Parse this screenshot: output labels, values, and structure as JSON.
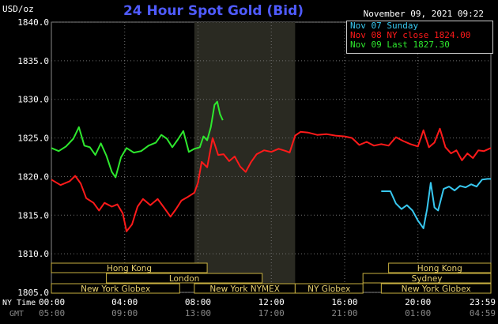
{
  "chart_data": {
    "type": "line",
    "title": "24 Hour Spot Gold (Bid)",
    "unit_label": "USD/oz",
    "date_label": "November 09, 2021 09:22",
    "ylim": [
      1805.0,
      1840.0
    ],
    "y_ticks": [
      "1840.0",
      "1835.0",
      "1830.0",
      "1825.0",
      "1820.0",
      "1815.0",
      "1810.0",
      "1805.0"
    ],
    "x_ticks_ny": [
      "00:00",
      "04:00",
      "08:00",
      "12:00",
      "16:00",
      "20:00",
      "23:59"
    ],
    "x_ticks_gmt": [
      "05:00",
      "09:00",
      "13:00",
      "17:00",
      "21:00",
      "01:00",
      "04:59"
    ],
    "x_row_labels": [
      "NY Time",
      "GMT"
    ],
    "grid": true,
    "legend_position": "top-right",
    "series": [
      {
        "name": "Nov 07 Sunday",
        "color": "#38c8f0",
        "points": [
          [
            18.0,
            1818.1
          ],
          [
            18.5,
            1818.1
          ],
          [
            18.8,
            1816.5
          ],
          [
            19.1,
            1815.8
          ],
          [
            19.4,
            1816.3
          ],
          [
            19.7,
            1815.6
          ],
          [
            20.0,
            1814.3
          ],
          [
            20.3,
            1813.3
          ],
          [
            20.5,
            1815.8
          ],
          [
            20.7,
            1819.2
          ],
          [
            20.9,
            1816.0
          ],
          [
            21.1,
            1815.6
          ],
          [
            21.4,
            1818.4
          ],
          [
            21.7,
            1818.7
          ],
          [
            22.0,
            1818.2
          ],
          [
            22.3,
            1818.8
          ],
          [
            22.6,
            1818.6
          ],
          [
            22.9,
            1819.0
          ],
          [
            23.2,
            1818.7
          ],
          [
            23.5,
            1819.6
          ],
          [
            23.8,
            1819.7
          ],
          [
            23.98,
            1819.7
          ]
        ]
      },
      {
        "name": "Nov 08 NY close 1824.00",
        "color": "#ff1a1a",
        "points": [
          [
            0.0,
            1819.6
          ],
          [
            0.5,
            1818.9
          ],
          [
            1.0,
            1819.4
          ],
          [
            1.3,
            1820.1
          ],
          [
            1.6,
            1819.1
          ],
          [
            1.9,
            1817.2
          ],
          [
            2.3,
            1816.6
          ],
          [
            2.6,
            1815.6
          ],
          [
            2.9,
            1816.6
          ],
          [
            3.3,
            1816.1
          ],
          [
            3.6,
            1816.4
          ],
          [
            3.9,
            1815.2
          ],
          [
            4.1,
            1812.9
          ],
          [
            4.4,
            1813.8
          ],
          [
            4.7,
            1816.1
          ],
          [
            5.0,
            1817.1
          ],
          [
            5.4,
            1816.3
          ],
          [
            5.8,
            1817.1
          ],
          [
            6.2,
            1815.8
          ],
          [
            6.5,
            1814.8
          ],
          [
            6.8,
            1815.8
          ],
          [
            7.1,
            1816.9
          ],
          [
            7.4,
            1817.3
          ],
          [
            7.8,
            1817.9
          ],
          [
            8.0,
            1819.2
          ],
          [
            8.2,
            1821.9
          ],
          [
            8.5,
            1821.2
          ],
          [
            8.8,
            1825.0
          ],
          [
            9.1,
            1822.8
          ],
          [
            9.4,
            1822.9
          ],
          [
            9.7,
            1822.0
          ],
          [
            10.0,
            1822.6
          ],
          [
            10.3,
            1821.3
          ],
          [
            10.6,
            1820.6
          ],
          [
            10.9,
            1821.9
          ],
          [
            11.2,
            1822.9
          ],
          [
            11.6,
            1823.4
          ],
          [
            12.0,
            1823.2
          ],
          [
            12.4,
            1823.6
          ],
          [
            12.8,
            1823.3
          ],
          [
            13.0,
            1823.1
          ],
          [
            13.3,
            1825.3
          ],
          [
            13.6,
            1825.8
          ],
          [
            14.0,
            1825.7
          ],
          [
            14.5,
            1825.4
          ],
          [
            15.0,
            1825.5
          ],
          [
            15.5,
            1825.3
          ],
          [
            16.0,
            1825.2
          ],
          [
            16.4,
            1825.0
          ],
          [
            16.8,
            1824.1
          ],
          [
            17.2,
            1824.5
          ],
          [
            17.6,
            1824.0
          ],
          [
            18.0,
            1824.2
          ],
          [
            18.4,
            1824.0
          ],
          [
            18.8,
            1825.1
          ],
          [
            19.2,
            1824.6
          ],
          [
            19.6,
            1824.2
          ],
          [
            20.0,
            1823.9
          ],
          [
            20.3,
            1826.0
          ],
          [
            20.6,
            1823.8
          ],
          [
            20.9,
            1824.4
          ],
          [
            21.2,
            1826.2
          ],
          [
            21.5,
            1823.8
          ],
          [
            21.8,
            1823.0
          ],
          [
            22.1,
            1823.4
          ],
          [
            22.4,
            1822.1
          ],
          [
            22.7,
            1823.0
          ],
          [
            23.0,
            1822.4
          ],
          [
            23.3,
            1823.4
          ],
          [
            23.6,
            1823.3
          ],
          [
            23.98,
            1823.7
          ]
        ]
      },
      {
        "name": "Nov 09 Last 1827.30",
        "color": "#2ee82e",
        "points": [
          [
            0.0,
            1823.7
          ],
          [
            0.4,
            1823.3
          ],
          [
            0.8,
            1823.9
          ],
          [
            1.2,
            1824.9
          ],
          [
            1.5,
            1826.4
          ],
          [
            1.8,
            1824.0
          ],
          [
            2.1,
            1823.8
          ],
          [
            2.4,
            1822.8
          ],
          [
            2.7,
            1824.3
          ],
          [
            3.0,
            1822.7
          ],
          [
            3.3,
            1820.6
          ],
          [
            3.5,
            1819.9
          ],
          [
            3.8,
            1822.5
          ],
          [
            4.1,
            1823.7
          ],
          [
            4.5,
            1823.1
          ],
          [
            4.9,
            1823.3
          ],
          [
            5.3,
            1824.0
          ],
          [
            5.7,
            1824.4
          ],
          [
            6.0,
            1825.4
          ],
          [
            6.3,
            1824.9
          ],
          [
            6.6,
            1823.8
          ],
          [
            6.9,
            1824.8
          ],
          [
            7.2,
            1825.9
          ],
          [
            7.5,
            1823.2
          ],
          [
            7.8,
            1823.6
          ],
          [
            8.1,
            1823.8
          ],
          [
            8.3,
            1825.2
          ],
          [
            8.5,
            1824.7
          ],
          [
            8.7,
            1826.4
          ],
          [
            8.9,
            1829.3
          ],
          [
            9.05,
            1829.7
          ],
          [
            9.2,
            1828.1
          ],
          [
            9.35,
            1827.3
          ]
        ]
      }
    ],
    "sessions": [
      {
        "label": "Hong Kong",
        "row": 0,
        "x0": 0.0,
        "x1": 8.5
      },
      {
        "label": "Hong Kong",
        "row": 0,
        "x0": 18.4,
        "x1": 23.98
      },
      {
        "label": "London",
        "row": 1,
        "x0": 3.0,
        "x1": 11.5
      },
      {
        "label": "Sydney",
        "row": 1,
        "x0": 17.0,
        "x1": 23.98
      },
      {
        "label": "New York Globex",
        "row": 2,
        "x0": 0.0,
        "x1": 7.0
      },
      {
        "label": "New York NYMEX",
        "row": 2,
        "x0": 7.8,
        "x1": 13.3
      },
      {
        "label": "NY Globex",
        "row": 2,
        "x0": 13.3,
        "x1": 17.0
      },
      {
        "label": "New York Globex",
        "row": 2,
        "x0": 18.0,
        "x1": 23.98
      }
    ],
    "highlight_range": [
      7.8,
      13.3
    ]
  }
}
